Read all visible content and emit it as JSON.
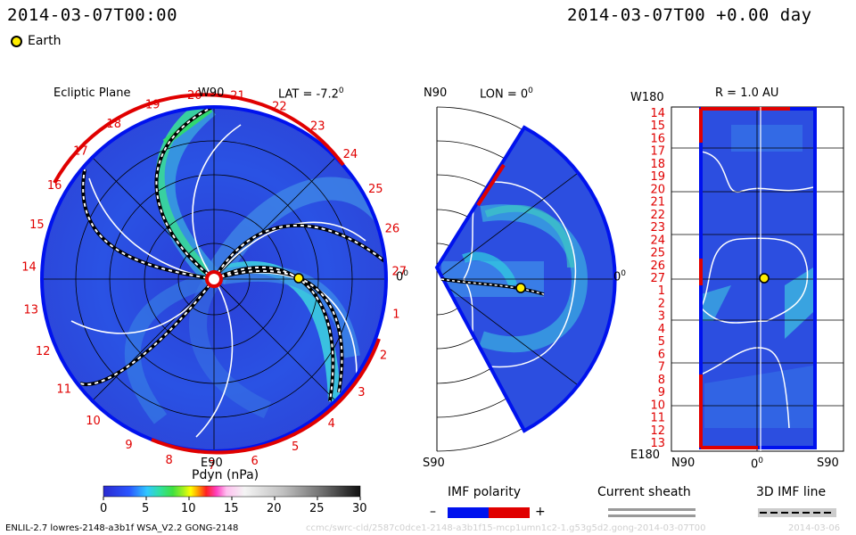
{
  "header": {
    "date_left": "2014-03-07T00:00",
    "date_right": "2014-03-07T00 +0.00 day",
    "earth_label": "Earth"
  },
  "ecliptic": {
    "title": "Ecliptic Plane",
    "top_label": "W90",
    "bottom_label": "E90",
    "lat_label": "LAT = -7.2",
    "lat_deg": "0",
    "right_label": "0",
    "right_deg": "0",
    "sector_labels": [
      "20",
      "21",
      "22",
      "23",
      "24",
      "25",
      "26",
      "27",
      "1",
      "2",
      "3",
      "4",
      "5",
      "6",
      "7",
      "8",
      "9",
      "10",
      "11",
      "12",
      "13",
      "14",
      "15",
      "16",
      "17",
      "18",
      "19"
    ]
  },
  "meridional": {
    "top_label": "N90",
    "bottom_label": "S90",
    "lon_label": "LON = 0",
    "lon_deg": "0",
    "right_label": "0",
    "right_deg": "0"
  },
  "synoptic": {
    "title": "R = 1.0 AU",
    "top_left": "W180",
    "bottom_left": "E180",
    "x_labels": [
      "N90",
      "0",
      "S90"
    ],
    "x_deg": "0",
    "y_labels": [
      "14",
      "15",
      "16",
      "17",
      "18",
      "19",
      "20",
      "21",
      "22",
      "23",
      "24",
      "25",
      "26",
      "27",
      "1",
      "2",
      "3",
      "4",
      "5",
      "6",
      "7",
      "8",
      "9",
      "10",
      "11",
      "12",
      "13"
    ]
  },
  "colorbar": {
    "title": "Pdyn (nPa)",
    "ticks": [
      "0",
      "5",
      "10",
      "15",
      "20",
      "25",
      "30"
    ],
    "range": [
      0,
      30
    ]
  },
  "legend": {
    "imf_title": "IMF polarity",
    "imf_minus": "–",
    "imf_plus": "+",
    "sheath_title": "Current sheath",
    "imf3d_title": "3D IMF line"
  },
  "footer": {
    "model": "ENLIL-2.7 lowres-2148-a3b1f WSA_V2.2 GONG-2148",
    "watermark": "ccmc/swrc-cld/2587c0dce1-2148-a3b1f15-mcp1umn1c2-1.g53g5d2.gong-2014-03-07T00",
    "date": "2014-03-06"
  },
  "colors": {
    "background_field": "#2a54e8",
    "deep_field": "#2c3ad0",
    "enhanced": "#3fa0e6",
    "high": "#35c9a9",
    "positive_polarity": "#e00000",
    "negative_polarity": "#0012ee",
    "earth": "#ffee00"
  }
}
